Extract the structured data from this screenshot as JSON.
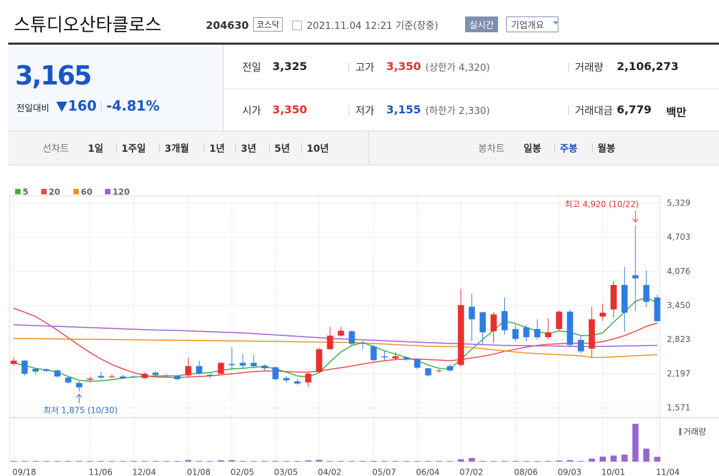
{
  "header": {
    "title": "스튜디오산타클로스",
    "code": "204630",
    "market": "코스닥",
    "timestamp": "2021.11.04 12:21 기준(장중)",
    "realtime_button": "실시간",
    "company_button": "기업개요"
  },
  "quote": {
    "price": "3,165",
    "change_label": "전일대비",
    "change": "160",
    "change_rate": "-4.81%"
  },
  "stats": [
    {
      "label": "전일",
      "value": "3,325"
    },
    {
      "label": "고가",
      "value": "3,350",
      "extra": "(상한가 4,320)"
    },
    {
      "label": "거래량",
      "value": "2,106,273"
    },
    {
      "label": "시가",
      "value": "3,350"
    },
    {
      "label": "저가",
      "value": "3,155",
      "extra": "(하한가 2,330)"
    },
    {
      "label": "거래대금",
      "value": "6,779",
      "extra": "백만"
    }
  ],
  "tabs": {
    "line_label": "선차트",
    "line_periods": [
      "1일",
      "1주일",
      "3개월",
      "1년",
      "3년",
      "5년",
      "10년"
    ],
    "candle_label": "봉차트",
    "candle_periods": [
      "일봉",
      "주봉",
      "월봉"
    ],
    "active_candle": 1
  },
  "chart_data": {
    "type": "candlestick",
    "up_color": "#e8302f",
    "down_color": "#2f7de1",
    "grid": true,
    "categories": [
      "09/18",
      null,
      null,
      null,
      null,
      null,
      null,
      "11/06",
      null,
      null,
      null,
      "12/04",
      null,
      null,
      null,
      null,
      "01/08",
      null,
      null,
      null,
      "02/05",
      null,
      null,
      null,
      "03/05",
      null,
      null,
      null,
      "04/02",
      null,
      null,
      null,
      null,
      "05/07",
      null,
      null,
      null,
      "06/04",
      null,
      null,
      null,
      "07/02",
      null,
      null,
      null,
      null,
      "08/06",
      null,
      null,
      null,
      "09/03",
      null,
      null,
      null,
      "10/01",
      null,
      null,
      null,
      null,
      "11/04"
    ],
    "open": [
      2380,
      2440,
      2290,
      2280,
      2260,
      2130,
      2030,
      2090,
      2160,
      2140,
      2150,
      2150,
      2120,
      2220,
      2170,
      2160,
      2170,
      2340,
      2180,
      2200,
      2380,
      2400,
      2400,
      2350,
      2320,
      2120,
      2060,
      2040,
      2230,
      2650,
      2900,
      2980,
      2770,
      2700,
      2520,
      2480,
      2500,
      2460,
      2300,
      2250,
      2340,
      2360,
      3430,
      3330,
      2980,
      3350,
      3020,
      3050,
      3020,
      2870,
      3020,
      3340,
      2820,
      2660,
      3250,
      3380,
      3830,
      4010,
      3830,
      3600
    ],
    "high": [
      2500,
      2450,
      2300,
      2300,
      2280,
      2150,
      2060,
      2150,
      2240,
      2190,
      2180,
      2170,
      2230,
      2250,
      2190,
      2180,
      2500,
      2440,
      2200,
      2420,
      2690,
      2560,
      2540,
      2370,
      2330,
      2150,
      2100,
      2230,
      2680,
      3060,
      3060,
      3000,
      2800,
      2720,
      2620,
      2600,
      2520,
      2480,
      2310,
      2280,
      2380,
      3760,
      3670,
      3340,
      3330,
      3600,
      3100,
      3100,
      3200,
      3220,
      3360,
      3380,
      2900,
      3430,
      3480,
      3900,
      4160,
      4920,
      4100,
      3650
    ],
    "low": [
      2350,
      2160,
      2180,
      2230,
      2130,
      2020,
      1875,
      2040,
      2110,
      2110,
      2100,
      2120,
      2110,
      2160,
      2140,
      2080,
      2150,
      2180,
      2120,
      2190,
      2280,
      2300,
      2300,
      2250,
      2080,
      2040,
      2000,
      1960,
      2210,
      2650,
      2880,
      2720,
      2650,
      2430,
      2450,
      2450,
      2440,
      2290,
      2150,
      2220,
      2240,
      2330,
      2800,
      2740,
      2770,
      2920,
      2790,
      2800,
      2830,
      2830,
      2980,
      2680,
      2580,
      2500,
      3170,
      3230,
      2970,
      3350,
      3420,
      3155
    ],
    "close": [
      2440,
      2200,
      2240,
      2250,
      2150,
      2040,
      1950,
      2110,
      2130,
      2150,
      2120,
      2140,
      2200,
      2180,
      2150,
      2100,
      2340,
      2200,
      2160,
      2400,
      2360,
      2350,
      2340,
      2300,
      2100,
      2080,
      2020,
      2200,
      2650,
      2900,
      2990,
      2750,
      2750,
      2450,
      2500,
      2520,
      2460,
      2310,
      2170,
      2260,
      2260,
      3460,
      3200,
      2960,
      3290,
      3000,
      2840,
      2870,
      2870,
      2960,
      3340,
      2730,
      2610,
      3200,
      3320,
      3830,
      3320,
      3950,
      3520,
      3165
    ],
    "ylim": [
      1571,
      5329
    ],
    "yticks": [
      {
        "value": 1571,
        "label": "1,571"
      },
      {
        "value": 2197,
        "label": "2,197"
      },
      {
        "value": 2823,
        "label": "2,823"
      },
      {
        "value": 3450,
        "label": "3,450"
      },
      {
        "value": 4076,
        "label": "4,076"
      },
      {
        "value": 4703,
        "label": "4,703"
      },
      {
        "value": 5329,
        "label": "5,329"
      }
    ],
    "series": [
      {
        "name": "5",
        "color": "#3cb043",
        "values": [
          2400,
          2350,
          2300,
          2270,
          2230,
          2150,
          2080,
          2060,
          2070,
          2090,
          2120,
          2140,
          2150,
          2160,
          2160,
          2160,
          2190,
          2210,
          2220,
          2260,
          2290,
          2300,
          2320,
          2330,
          2290,
          2230,
          2160,
          2140,
          2220,
          2420,
          2600,
          2720,
          2770,
          2700,
          2620,
          2560,
          2500,
          2440,
          2360,
          2300,
          2280,
          2470,
          2650,
          2830,
          3000,
          3170,
          3120,
          3050,
          2980,
          2930,
          2990,
          2960,
          2900,
          2900,
          2950,
          3150,
          3330,
          3530,
          3600,
          3500
        ]
      },
      {
        "name": "20",
        "color": "#e84c4c",
        "values": [
          3400,
          3330,
          3250,
          3130,
          3000,
          2860,
          2720,
          2590,
          2470,
          2370,
          2290,
          2220,
          2170,
          2140,
          2135,
          2130,
          2140,
          2150,
          2160,
          2180,
          2200,
          2220,
          2240,
          2250,
          2250,
          2240,
          2230,
          2230,
          2250,
          2280,
          2310,
          2340,
          2380,
          2410,
          2440,
          2460,
          2470,
          2470,
          2460,
          2450,
          2440,
          2460,
          2490,
          2520,
          2560,
          2610,
          2650,
          2690,
          2720,
          2740,
          2750,
          2760,
          2760,
          2760,
          2790,
          2840,
          2900,
          2980,
          3070,
          3130
        ]
      },
      {
        "name": "60",
        "color": "#f0901e",
        "values": [
          2850,
          2847,
          2845,
          2842,
          2840,
          2837,
          2835,
          2832,
          2830,
          2827,
          2825,
          2822,
          2820,
          2817,
          2816,
          2815,
          2812,
          2810,
          2807,
          2805,
          2802,
          2800,
          2797,
          2795,
          2792,
          2790,
          2787,
          2785,
          2782,
          2780,
          2777,
          2775,
          2765,
          2755,
          2745,
          2735,
          2725,
          2715,
          2705,
          2700,
          2700,
          2700,
          2680,
          2660,
          2640,
          2620,
          2600,
          2580,
          2570,
          2560,
          2550,
          2540,
          2530,
          2500,
          2500,
          2510,
          2520,
          2530,
          2540,
          2550
        ]
      },
      {
        "name": "120",
        "color": "#a05fd0",
        "values": [
          3100,
          3092,
          3085,
          3077,
          3070,
          3062,
          3055,
          3047,
          3040,
          3032,
          3025,
          3017,
          3010,
          3002,
          2999,
          2995,
          2987,
          2980,
          2972,
          2965,
          2957,
          2950,
          2937,
          2925,
          2912,
          2900,
          2887,
          2875,
          2862,
          2850,
          2841,
          2832,
          2823,
          2815,
          2806,
          2797,
          2788,
          2780,
          2772,
          2765,
          2757,
          2750,
          2742,
          2735,
          2727,
          2720,
          2717,
          2715,
          2712,
          2710,
          2707,
          2705,
          2702,
          2700,
          2703,
          2706,
          2710,
          2713,
          2716,
          2720
        ]
      }
    ],
    "volume": {
      "name": "거래량",
      "color": "#9966cc",
      "values": [
        300000,
        300000,
        300000,
        300000,
        300000,
        300000,
        300000,
        300000,
        300000,
        300000,
        300000,
        300000,
        300000,
        300000,
        300000,
        300000,
        800000,
        300000,
        300000,
        600000,
        700000,
        300000,
        300000,
        300000,
        300000,
        300000,
        300000,
        600000,
        900000,
        300000,
        300000,
        300000,
        300000,
        300000,
        300000,
        300000,
        300000,
        300000,
        300000,
        300000,
        300000,
        1200000,
        1800000,
        300000,
        300000,
        300000,
        300000,
        300000,
        300000,
        300000,
        500000,
        700000,
        300000,
        1500000,
        2500000,
        3000000,
        3500000,
        19000000,
        6500000,
        2400000
      ]
    },
    "annotations": {
      "high": "최고 4,920 (10/22)",
      "low": "최저 1,875 (10/30)"
    }
  }
}
